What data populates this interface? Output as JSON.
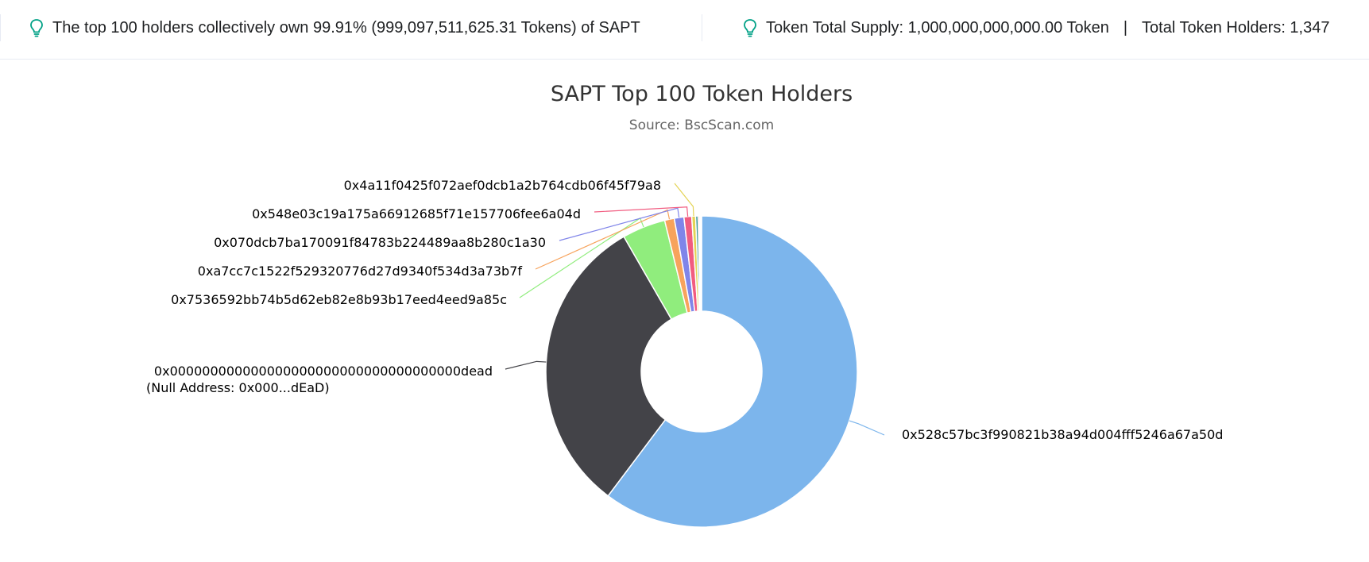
{
  "summary": {
    "top_holders_text": "The top 100 holders collectively own 99.91% (999,097,511,625.31 Tokens) of SAPT",
    "total_supply_text": "Token Total Supply: 1,000,000,000,000.00 Token",
    "separator": "|",
    "total_holders_text": "Total Token Holders: 1,347",
    "icon": "lightbulb-icon",
    "icon_color": "#00a186"
  },
  "chart_data": {
    "type": "pie",
    "donut": true,
    "title": "SAPT Top 100 Token Holders",
    "subtitle": "Source: BscScan.com",
    "series": [
      {
        "name": "0x528c57bc3f990821b38a94d004fff5246a67a50d",
        "value": 60.2,
        "color": "#7cb5ec"
      },
      {
        "name": "0x000000000000000000000000000000000000dead",
        "note": "(Null Address: 0x000...dEaD)",
        "value": 31.4,
        "color": "#434348"
      },
      {
        "name": "0x7536592bb74b5d62eb82e8b93b17eed4eed9a85c",
        "value": 4.5,
        "color": "#90ed7d"
      },
      {
        "name": "0xa7cc7c1522f529320776d27d9340f534d3a73b7f",
        "value": 1.0,
        "color": "#f7a35c"
      },
      {
        "name": "0x070dcb7ba170091f84783b224489aa8b280c1a30",
        "value": 1.0,
        "color": "#8085e9"
      },
      {
        "name": "0x548e03c19a175a66912685f71e157706fee6a04d",
        "value": 0.8,
        "color": "#f15c80"
      },
      {
        "name": "0x4a11f0425f072aef0dcb1a2b764cdb06f45f79a8",
        "value": 0.4,
        "color": "#e4d354"
      },
      {
        "name": "",
        "value": 0.25,
        "color": "#2b908f"
      },
      {
        "name": "",
        "value": 0.15,
        "color": "#f45b5b"
      },
      {
        "name": "",
        "value": 0.1,
        "color": "#91e8e1"
      },
      {
        "name": "",
        "value": 0.11,
        "color": "#7cb5ec"
      }
    ]
  }
}
